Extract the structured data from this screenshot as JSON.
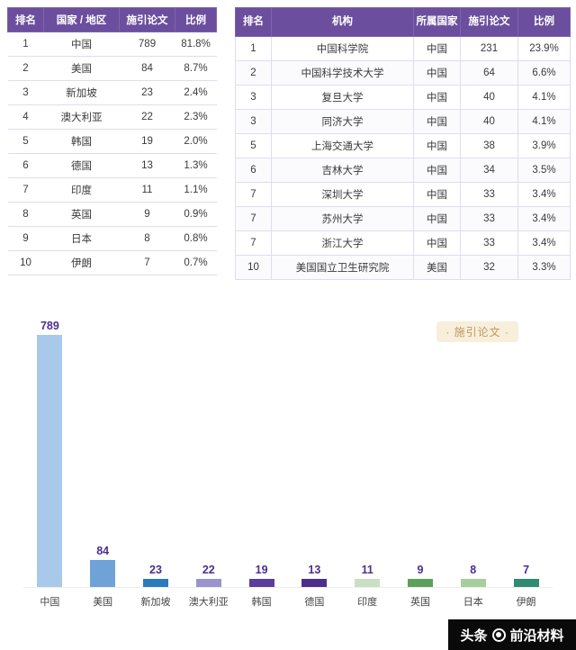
{
  "left_table": {
    "headers": [
      "排名",
      "国家 / 地区",
      "施引论文",
      "比例"
    ],
    "rows": [
      [
        "1",
        "中国",
        "789",
        "81.8%"
      ],
      [
        "2",
        "美国",
        "84",
        "8.7%"
      ],
      [
        "3",
        "新加坡",
        "23",
        "2.4%"
      ],
      [
        "4",
        "澳大利亚",
        "22",
        "2.3%"
      ],
      [
        "5",
        "韩国",
        "19",
        "2.0%"
      ],
      [
        "6",
        "德国",
        "13",
        "1.3%"
      ],
      [
        "7",
        "印度",
        "11",
        "1.1%"
      ],
      [
        "8",
        "英国",
        "9",
        "0.9%"
      ],
      [
        "9",
        "日本",
        "8",
        "0.8%"
      ],
      [
        "10",
        "伊朗",
        "7",
        "0.7%"
      ]
    ]
  },
  "right_table": {
    "headers": [
      "排名",
      "机构",
      "所属国家",
      "施引论文",
      "比例"
    ],
    "rows": [
      [
        "1",
        "中国科学院",
        "中国",
        "231",
        "23.9%"
      ],
      [
        "2",
        "中国科学技术大学",
        "中国",
        "64",
        "6.6%"
      ],
      [
        "3",
        "复旦大学",
        "中国",
        "40",
        "4.1%"
      ],
      [
        "3",
        "同济大学",
        "中国",
        "40",
        "4.1%"
      ],
      [
        "5",
        "上海交通大学",
        "中国",
        "38",
        "3.9%"
      ],
      [
        "6",
        "吉林大学",
        "中国",
        "34",
        "3.5%"
      ],
      [
        "7",
        "深圳大学",
        "中国",
        "33",
        "3.4%"
      ],
      [
        "7",
        "苏州大学",
        "中国",
        "33",
        "3.4%"
      ],
      [
        "7",
        "浙江大学",
        "中国",
        "33",
        "3.4%"
      ],
      [
        "10",
        "美国国立卫生研究院",
        "美国",
        "32",
        "3.3%"
      ]
    ]
  },
  "chart_data": {
    "type": "bar",
    "title": "",
    "legend": "· 施引论文 ·",
    "categories": [
      "中国",
      "美国",
      "新加坡",
      "澳大利亚",
      "韩国",
      "德国",
      "印度",
      "英国",
      "日本",
      "伊朗"
    ],
    "values": [
      789,
      84,
      23,
      22,
      19,
      13,
      11,
      9,
      8,
      7
    ],
    "colors": [
      "#A9C9EA",
      "#6FA3D8",
      "#2B7BBB",
      "#9B93CE",
      "#5A3E9E",
      "#4C2F8C",
      "#C9DEC2",
      "#5CA05C",
      "#A5CF9D",
      "#2F8B72"
    ],
    "ylim": [
      0,
      800
    ],
    "grid": false,
    "label_color": "#4A2F8F",
    "legend_position": "top-right"
  },
  "watermark": {
    "app": "头条",
    "account": "前沿材料"
  },
  "colors": {
    "table_header_bg": "#6B4F9E",
    "table_border": "#E2DBF0",
    "value_label": "#4A2F8F",
    "legend_bg": "#F7EFDB",
    "legend_text": "#C0975C",
    "watermark_bg": "#0A0A0A"
  }
}
